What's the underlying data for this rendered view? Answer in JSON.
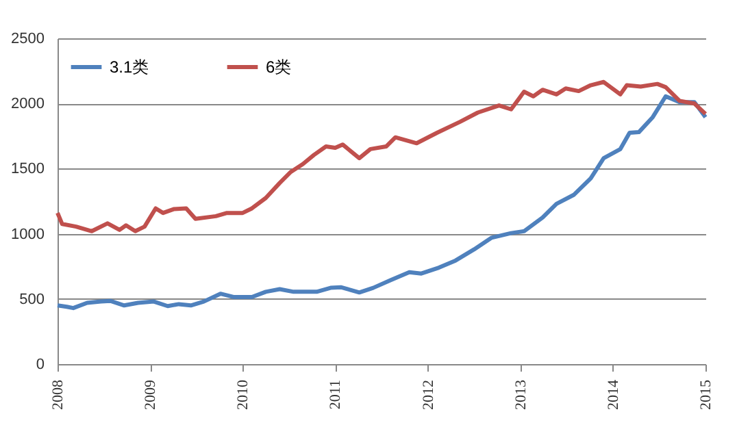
{
  "chart_data": {
    "type": "line",
    "legend": "top left",
    "grid": "y",
    "marker": "none",
    "line_style": "solid",
    "xlim": [
      2008,
      2015
    ],
    "xticks": [
      2008,
      2009,
      2010,
      2011,
      2012,
      2013,
      2014,
      2015
    ],
    "ylim": [
      0,
      2500
    ],
    "yticks": [
      0,
      500,
      1000,
      1500,
      2000,
      2500
    ],
    "series": [
      {
        "name": "3.1类",
        "color": "#4f81bd",
        "x": [
          2008,
          2008.1,
          2008.17,
          2008.32,
          2008.47,
          2008.57,
          2008.72,
          2008.87,
          2009.04,
          2009.19,
          2009.31,
          2009.44,
          2009.58,
          2009.76,
          2009.9,
          2010.1,
          2010.25,
          2010.4,
          2010.55,
          2010.8,
          2010.95,
          2011.06,
          2011.26,
          2011.41,
          2011.6,
          2011.8,
          2011.93,
          2012.12,
          2012.3,
          2012.5,
          2012.69,
          2012.9,
          2013.04,
          2013.24,
          2013.39,
          2013.58,
          2013.76,
          2013.9,
          2014.08,
          2014.18,
          2014.28,
          2014.43,
          2014.57,
          2014.72,
          2014.88,
          2015
        ],
        "values": [
          450,
          440,
          430,
          470,
          480,
          485,
          450,
          470,
          480,
          445,
          460,
          450,
          480,
          540,
          515,
          515,
          555,
          575,
          555,
          555,
          585,
          590,
          550,
          585,
          645,
          705,
          695,
          740,
          795,
          880,
          970,
          1005,
          1020,
          1125,
          1230,
          1300,
          1425,
          1580,
          1650,
          1775,
          1780,
          1895,
          2055,
          2010,
          2010,
          1895
        ]
      },
      {
        "name": "6类",
        "color": "#c0504d",
        "x": [
          2008,
          2008.05,
          2008.2,
          2008.37,
          2008.54,
          2008.67,
          2008.74,
          2008.84,
          2008.94,
          2009.06,
          2009.14,
          2009.26,
          2009.39,
          2009.49,
          2009.71,
          2009.83,
          2010,
          2010.1,
          2010.25,
          2010.4,
          2010.52,
          2010.65,
          2010.77,
          2010.9,
          2011,
          2011.08,
          2011.26,
          2011.38,
          2011.55,
          2011.65,
          2011.88,
          2012.1,
          2012.35,
          2012.54,
          2012.77,
          2012.9,
          2013.04,
          2013.14,
          2013.24,
          2013.39,
          2013.49,
          2013.63,
          2013.76,
          2013.9,
          2014.08,
          2014.15,
          2014.3,
          2014.48,
          2014.57,
          2014.72,
          2014.88,
          2015
        ],
        "values": [
          1160,
          1075,
          1055,
          1020,
          1080,
          1030,
          1065,
          1020,
          1055,
          1195,
          1160,
          1190,
          1195,
          1115,
          1135,
          1160,
          1160,
          1195,
          1275,
          1390,
          1475,
          1535,
          1605,
          1670,
          1660,
          1685,
          1580,
          1650,
          1670,
          1740,
          1695,
          1775,
          1860,
          1930,
          1985,
          1955,
          2090,
          2055,
          2105,
          2070,
          2115,
          2095,
          2140,
          2165,
          2070,
          2140,
          2130,
          2150,
          2125,
          2020,
          2000,
          1920
        ]
      }
    ]
  }
}
